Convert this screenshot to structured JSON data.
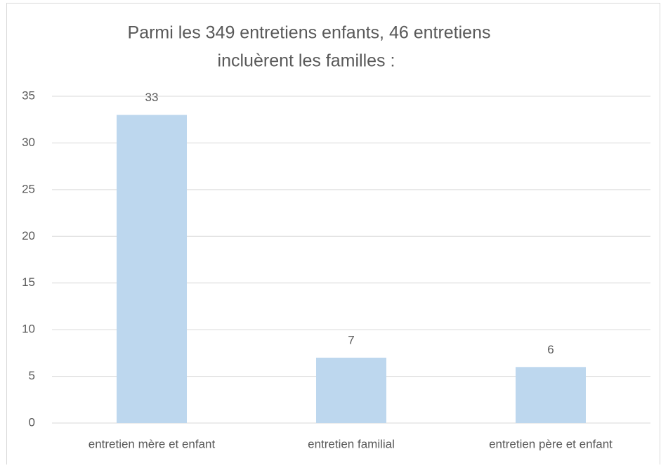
{
  "chart_data": {
    "type": "bar",
    "title": [
      "Parmi les 349 entretiens enfants, 46 entretiens",
      "incluèrent les familles :"
    ],
    "categories": [
      "entretien mère et enfant",
      "entretien familial",
      "entretien père et enfant"
    ],
    "values": [
      33,
      7,
      6
    ],
    "color": "#bdd7ee",
    "ylim": [
      0,
      35
    ],
    "yticks": [
      0,
      5,
      10,
      15,
      20,
      25,
      30,
      35
    ],
    "grid": true
  }
}
